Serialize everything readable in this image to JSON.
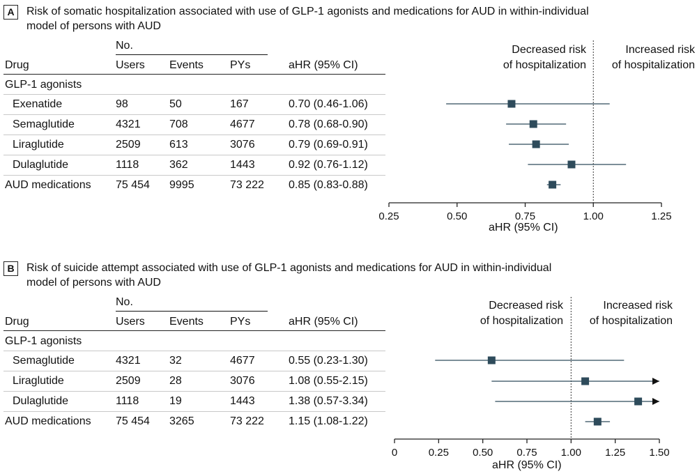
{
  "chart_data": [
    {
      "type": "forest",
      "panel": "A",
      "title_line1": "Risk of somatic hospitalization associated with use of GLP-1 agonists and medications for AUD in within-individual",
      "title_line2": "model of persons with AUD",
      "columns": {
        "no_group": "No.",
        "drug": "Drug",
        "users": "Users",
        "events": "Events",
        "pys": "PYs",
        "ahr": "aHR (95% CI)"
      },
      "group_label": "GLP-1 agonists",
      "rows": [
        {
          "drug": "Exenatide",
          "users": "98",
          "events": "50",
          "pys": "167",
          "ahr_text": "0.70 (0.46-1.06)",
          "hr": 0.7,
          "lo": 0.46,
          "hi": 1.06
        },
        {
          "drug": "Semaglutide",
          "users": "4321",
          "events": "708",
          "pys": "4677",
          "ahr_text": "0.78 (0.68-0.90)",
          "hr": 0.78,
          "lo": 0.68,
          "hi": 0.9
        },
        {
          "drug": "Liraglutide",
          "users": "2509",
          "events": "613",
          "pys": "3076",
          "ahr_text": "0.79 (0.69-0.91)",
          "hr": 0.79,
          "lo": 0.69,
          "hi": 0.91
        },
        {
          "drug": "Dulaglutide",
          "users": "1118",
          "events": "362",
          "pys": "1443",
          "ahr_text": "0.92 (0.76-1.12)",
          "hr": 0.92,
          "lo": 0.76,
          "hi": 1.12
        },
        {
          "drug": "AUD medications",
          "users": "75 454",
          "events": "9995",
          "pys": "73 222",
          "ahr_text": "0.85 (0.83-0.88)",
          "hr": 0.85,
          "lo": 0.83,
          "hi": 0.88
        }
      ],
      "xlim": [
        0.25,
        1.25
      ],
      "ticks": [
        "0.25",
        "0.50",
        "0.75",
        "1.00",
        "1.25"
      ],
      "tick_values": [
        0.25,
        0.5,
        0.75,
        1.0,
        1.25
      ],
      "reference": 1.0,
      "xlabel": "aHR (95% CI)",
      "left_label": [
        "Decreased risk",
        "of hospitalization"
      ],
      "right_label": [
        "Increased risk",
        "of hospitalization"
      ],
      "marker_color": "#2e4b5b"
    },
    {
      "type": "forest",
      "panel": "B",
      "title_line1": "Risk of suicide attempt associated with use of GLP-1 agonists and medications for AUD in within-individual",
      "title_line2": "model of persons with AUD",
      "columns": {
        "no_group": "No.",
        "drug": "Drug",
        "users": "Users",
        "events": "Events",
        "pys": "PYs",
        "ahr": "aHR (95% CI)"
      },
      "group_label": "GLP-1 agonists",
      "rows": [
        {
          "drug": "Semaglutide",
          "users": "4321",
          "events": "32",
          "pys": "4677",
          "ahr_text": "0.55 (0.23-1.30)",
          "hr": 0.55,
          "lo": 0.23,
          "hi": 1.3
        },
        {
          "drug": "Liraglutide",
          "users": "2509",
          "events": "28",
          "pys": "3076",
          "ahr_text": "1.08 (0.55-2.15)",
          "hr": 1.08,
          "lo": 0.55,
          "hi": 2.15
        },
        {
          "drug": "Dulaglutide",
          "users": "1118",
          "events": "19",
          "pys": "1443",
          "ahr_text": "1.38 (0.57-3.34)",
          "hr": 1.38,
          "lo": 0.57,
          "hi": 3.34
        },
        {
          "drug": "AUD medications",
          "users": "75 454",
          "events": "3265",
          "pys": "73 222",
          "ahr_text": "1.15 (1.08-1.22)",
          "hr": 1.15,
          "lo": 1.08,
          "hi": 1.22
        }
      ],
      "xlim": [
        0,
        1.5
      ],
      "ticks": [
        "0",
        "0.25",
        "0.50",
        "0.75",
        "1.00",
        "1.25",
        "1.50"
      ],
      "tick_values": [
        0,
        0.25,
        0.5,
        0.75,
        1.0,
        1.25,
        1.5
      ],
      "reference": 1.0,
      "xlabel": "aHR (95% CI)",
      "left_label": [
        "Decreased risk",
        "of hospitalization"
      ],
      "right_label": [
        "Increased risk",
        "of hospitalization"
      ],
      "marker_color": "#2e4b5b"
    }
  ]
}
